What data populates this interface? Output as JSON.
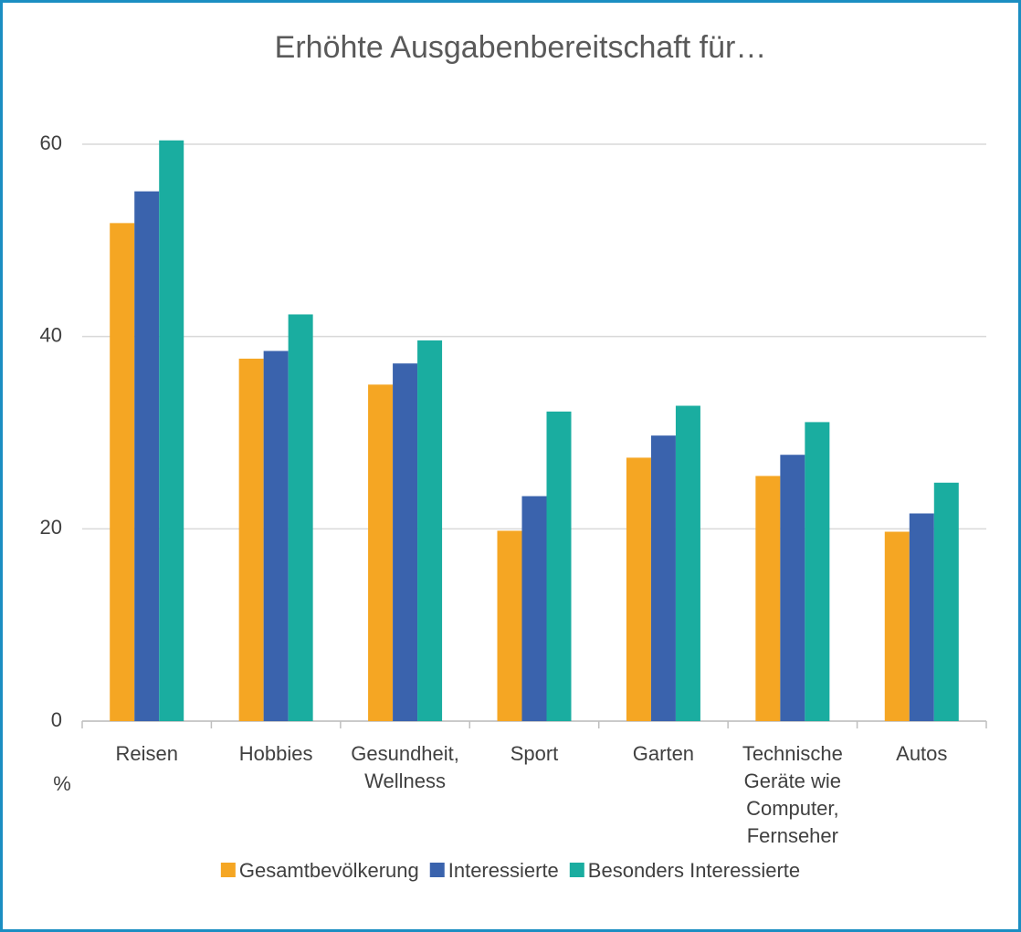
{
  "chart_data": {
    "type": "bar",
    "title": "Erhöhte Ausgabenbereitschaft für…",
    "y_label": "%",
    "categories": [
      "Reisen",
      "Hobbies",
      "Gesundheit, Wellness",
      "Sport",
      "Garten",
      "Technische Geräte wie Computer, Fernseher",
      "Autos"
    ],
    "series": [
      {
        "name": "Gesamtbevölkerung",
        "color": "#f5a623",
        "values": [
          51.8,
          37.7,
          35.0,
          19.8,
          27.4,
          25.5,
          19.7
        ]
      },
      {
        "name": "Interessierte",
        "color": "#3a63ad",
        "values": [
          55.1,
          38.5,
          37.2,
          23.4,
          29.7,
          27.7,
          21.6
        ]
      },
      {
        "name": "Besonders Interessierte",
        "color": "#1aada0",
        "values": [
          60.4,
          42.3,
          39.6,
          32.2,
          32.8,
          31.1,
          24.8
        ]
      }
    ],
    "ylim": [
      0,
      60
    ],
    "yticks": [
      0,
      20,
      40,
      60
    ],
    "grid": true,
    "legend": "bottom"
  }
}
